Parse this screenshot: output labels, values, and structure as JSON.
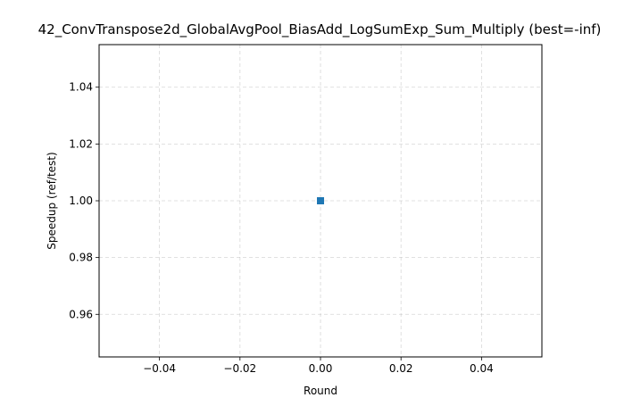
{
  "chart_data": {
    "type": "line",
    "title": "42_ConvTranspose2d_GlobalAvgPool_BiasAdd_LogSumExp_Sum_Multiply (best=-inf)",
    "xlabel": "Round",
    "ylabel": "Speedup (ref/test)",
    "xlim": [
      -0.055,
      0.055
    ],
    "ylim": [
      0.945,
      1.055
    ],
    "xticks": [
      -0.04,
      -0.02,
      0.0,
      0.02,
      0.04
    ],
    "xtick_labels": [
      "−0.04",
      "−0.02",
      "0.00",
      "0.02",
      "0.04"
    ],
    "yticks": [
      0.96,
      0.98,
      1.0,
      1.02,
      1.04
    ],
    "ytick_labels": [
      "0.96",
      "0.98",
      "1.00",
      "1.02",
      "1.04"
    ],
    "grid": true,
    "series": [
      {
        "x": [
          0
        ],
        "y": [
          1.0
        ],
        "color": "#1f77b4",
        "marker": "square"
      }
    ]
  }
}
